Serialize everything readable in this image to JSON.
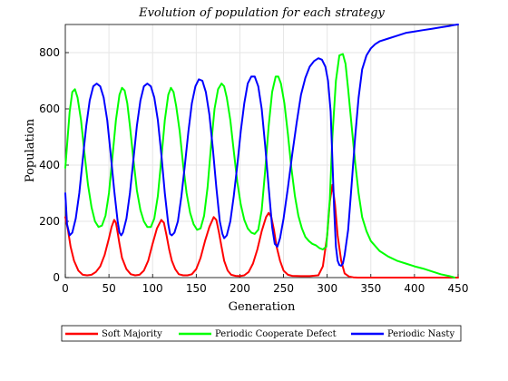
{
  "chart_data": {
    "type": "line",
    "title": "Evolution of population for each strategy",
    "xlabel": "Generation",
    "ylabel": "Population",
    "xlim": [
      0,
      450
    ],
    "ylim": [
      0,
      900
    ],
    "xticks": [
      "0",
      "50",
      "100",
      "150",
      "200",
      "250",
      "300",
      "350",
      "400",
      "450"
    ],
    "yticks": [
      "0",
      "200",
      "400",
      "600",
      "800"
    ],
    "grid": true,
    "legend_position": "bottom",
    "series": [
      {
        "name": "Soft Majority",
        "color": "#ff0000",
        "x": [
          0,
          3,
          6,
          10,
          15,
          20,
          25,
          30,
          35,
          40,
          45,
          50,
          53,
          56,
          58,
          60,
          62,
          65,
          70,
          75,
          80,
          85,
          90,
          95,
          100,
          105,
          110,
          113,
          116,
          119,
          122,
          126,
          130,
          135,
          140,
          145,
          150,
          155,
          160,
          165,
          170,
          173,
          176,
          179,
          182,
          186,
          190,
          195,
          200,
          205,
          210,
          215,
          220,
          225,
          230,
          233,
          236,
          239,
          242,
          246,
          250,
          255,
          260,
          270,
          280,
          290,
          295,
          300,
          303,
          306,
          309,
          312,
          316,
          320,
          325,
          330,
          335,
          340,
          350,
          380,
          420,
          450
        ],
        "values": [
          215,
          170,
          110,
          60,
          25,
          10,
          8,
          10,
          20,
          40,
          80,
          140,
          180,
          205,
          195,
          160,
          120,
          70,
          30,
          12,
          8,
          10,
          25,
          60,
          120,
          175,
          205,
          195,
          150,
          100,
          60,
          30,
          12,
          8,
          8,
          12,
          30,
          70,
          130,
          180,
          215,
          205,
          160,
          110,
          60,
          25,
          10,
          6,
          5,
          8,
          20,
          50,
          100,
          165,
          215,
          230,
          215,
          170,
          110,
          60,
          25,
          10,
          6,
          5,
          5,
          8,
          40,
          150,
          270,
          330,
          260,
          150,
          60,
          15,
          4,
          1,
          0,
          0,
          0,
          0,
          0,
          0
        ]
      },
      {
        "name": "Periodic Cooperate Defect",
        "color": "#00ff00",
        "x": [
          0,
          2,
          5,
          8,
          11,
          14,
          18,
          22,
          26,
          30,
          34,
          38,
          42,
          46,
          50,
          54,
          58,
          62,
          65,
          68,
          71,
          74,
          78,
          82,
          86,
          90,
          94,
          98,
          102,
          106,
          110,
          114,
          118,
          121,
          124,
          127,
          131,
          135,
          139,
          143,
          147,
          151,
          155,
          159,
          163,
          167,
          171,
          175,
          179,
          182,
          185,
          189,
          193,
          197,
          201,
          205,
          209,
          213,
          217,
          221,
          225,
          229,
          233,
          237,
          241,
          244,
          247,
          251,
          255,
          259,
          263,
          267,
          271,
          275,
          279,
          283,
          287,
          291,
          295,
          299,
          303,
          306,
          310,
          314,
          318,
          321,
          324,
          328,
          332,
          336,
          340,
          345,
          350,
          360,
          370,
          380,
          390,
          400,
          410,
          420,
          430,
          440,
          446
        ],
        "values": [
          390,
          470,
          590,
          660,
          670,
          640,
          560,
          440,
          330,
          250,
          200,
          180,
          185,
          220,
          300,
          430,
          560,
          650,
          675,
          665,
          620,
          540,
          420,
          310,
          240,
          200,
          180,
          180,
          210,
          290,
          420,
          560,
          650,
          675,
          660,
          610,
          520,
          400,
          300,
          230,
          190,
          170,
          175,
          220,
          320,
          470,
          600,
          670,
          690,
          680,
          640,
          560,
          450,
          340,
          260,
          205,
          175,
          160,
          155,
          170,
          240,
          380,
          540,
          660,
          715,
          715,
          690,
          620,
          510,
          390,
          290,
          220,
          175,
          145,
          130,
          120,
          115,
          105,
          100,
          110,
          280,
          500,
          700,
          790,
          795,
          760,
          670,
          540,
          410,
          300,
          215,
          165,
          130,
          95,
          75,
          60,
          50,
          40,
          32,
          22,
          12,
          5,
          0
        ]
      },
      {
        "name": "Periodic Nasty",
        "color": "#0000ff",
        "x": [
          0,
          2,
          5,
          8,
          12,
          16,
          20,
          24,
          28,
          32,
          36,
          40,
          44,
          48,
          52,
          56,
          60,
          62,
          64,
          66,
          70,
          74,
          78,
          82,
          86,
          90,
          94,
          98,
          102,
          106,
          110,
          114,
          118,
          120,
          122,
          125,
          129,
          133,
          137,
          141,
          145,
          149,
          153,
          157,
          161,
          165,
          169,
          173,
          177,
          180,
          182,
          185,
          189,
          193,
          197,
          201,
          205,
          209,
          213,
          217,
          221,
          225,
          229,
          233,
          237,
          240,
          243,
          246,
          250,
          255,
          260,
          265,
          270,
          275,
          280,
          285,
          290,
          294,
          298,
          301,
          304,
          306,
          308,
          310,
          312,
          314,
          316,
          318,
          320,
          324,
          328,
          332,
          336,
          340,
          345,
          350,
          355,
          360,
          370,
          380,
          390,
          400,
          410,
          420,
          430,
          440,
          445,
          450
        ],
        "values": [
          300,
          190,
          150,
          160,
          210,
          300,
          420,
          540,
          630,
          680,
          690,
          680,
          640,
          560,
          440,
          310,
          200,
          160,
          150,
          160,
          210,
          300,
          420,
          540,
          630,
          680,
          690,
          680,
          640,
          560,
          440,
          300,
          190,
          155,
          150,
          160,
          200,
          290,
          400,
          520,
          620,
          680,
          705,
          700,
          660,
          580,
          460,
          320,
          200,
          155,
          140,
          150,
          200,
          290,
          400,
          520,
          620,
          690,
          715,
          715,
          680,
          600,
          470,
          320,
          180,
          120,
          110,
          140,
          210,
          320,
          440,
          550,
          650,
          710,
          750,
          770,
          780,
          775,
          750,
          700,
          590,
          420,
          240,
          110,
          60,
          45,
          42,
          50,
          80,
          170,
          330,
          500,
          640,
          740,
          790,
          815,
          830,
          840,
          850,
          860,
          870,
          875,
          880,
          885,
          890,
          895,
          898,
          900
        ]
      }
    ]
  }
}
